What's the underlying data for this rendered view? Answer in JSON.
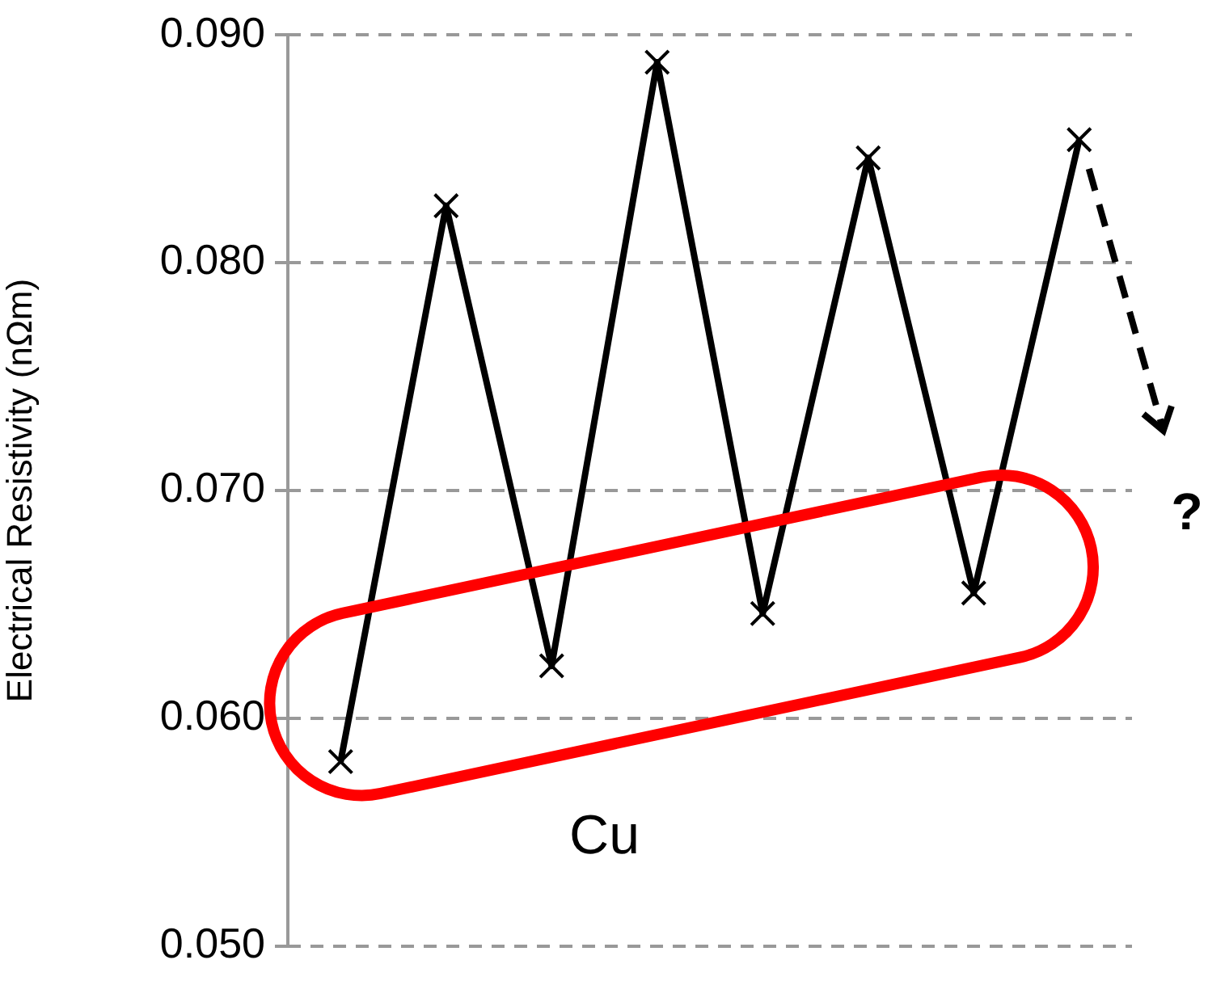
{
  "chart_data": {
    "type": "line",
    "ylabel": "Electrical Resistivity (nΩm)",
    "categories": [
      null,
      null,
      null,
      null,
      null,
      null,
      null,
      null
    ],
    "series": [
      {
        "color": "#000000",
        "values": [
          0.0581,
          0.0825,
          0.0623,
          0.0888,
          0.0646,
          0.0846,
          0.0655,
          0.0854
        ]
      }
    ],
    "ylim": [
      0.05,
      0.09
    ],
    "yticks": [
      {
        "value": 0.05,
        "label": "0.050"
      },
      {
        "value": 0.06,
        "label": "0.060"
      },
      {
        "value": 0.07,
        "label": "0.070"
      },
      {
        "value": 0.08,
        "label": "0.080"
      },
      {
        "value": 0.09,
        "label": "0.090"
      }
    ],
    "grid": "y",
    "legend": false,
    "marker": "cross",
    "line_style": "solid",
    "annotations": [
      "Cu",
      "?"
    ]
  }
}
